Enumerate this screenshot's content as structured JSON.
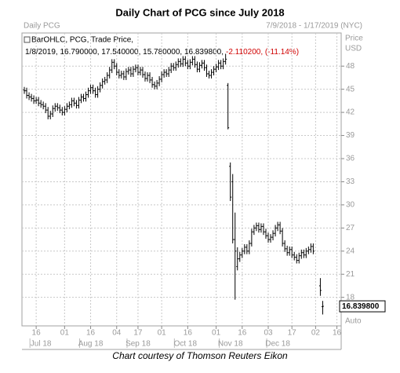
{
  "chart_data": {
    "type": "ohlc",
    "title": "Daily Chart of PCG since July 2018",
    "subtitle": "Daily PCG",
    "date_range": "7/9/2018 - 1/17/2019 (NYC)",
    "y_axis_label": [
      "Price",
      "USD"
    ],
    "scale_label": "Auto",
    "legend_title": "BarOHLC, PCG, Trade Price,",
    "legend_values": "1/8/2019, 16.790000, 17.540000, 15.780000, 16.839800,",
    "legend_change": "-2.110200, (-11.14%)",
    "last_value_label": "16.839800",
    "caption": "Chart courtesy of Thomson Reuters Eikon",
    "color": "#000000",
    "grid": true,
    "xlim": [
      -1,
      133.8
    ],
    "ylim": [
      14.3,
      52.3
    ],
    "yticks": [
      18,
      21,
      24,
      27,
      30,
      33,
      36,
      39,
      42,
      45,
      48
    ],
    "xticks": [
      {
        "value": 5,
        "label": "16"
      },
      {
        "value": 17,
        "label": "01"
      },
      {
        "value": 28,
        "label": "16"
      },
      {
        "value": 39,
        "label": "04"
      },
      {
        "value": 48,
        "label": "17"
      },
      {
        "value": 58,
        "label": "01"
      },
      {
        "value": 69,
        "label": "16"
      },
      {
        "value": 81,
        "label": "01"
      },
      {
        "value": 92,
        "label": "16"
      },
      {
        "value": 103,
        "label": "03"
      },
      {
        "value": 113,
        "label": "17"
      },
      {
        "value": 123,
        "label": "02"
      },
      {
        "value": 132,
        "label": "16"
      }
    ],
    "month_labels": [
      {
        "value": 7,
        "label": "Jul 18"
      },
      {
        "value": 28,
        "label": "Aug 18"
      },
      {
        "value": 48,
        "label": "Sep 18"
      },
      {
        "value": 68,
        "label": "Oct 18"
      },
      {
        "value": 87,
        "label": "Nov 18"
      },
      {
        "value": 107,
        "label": "Dec 18"
      }
    ],
    "ohlc": {
      "open": [
        44.9,
        44.8,
        44.2,
        44.0,
        43.8,
        43.5,
        43.6,
        43.2,
        43.0,
        42.8,
        42.3,
        41.5,
        41.8,
        42.5,
        42.8,
        42.6,
        42.3,
        42.0,
        42.4,
        42.8,
        43.0,
        43.5,
        43.2,
        42.9,
        43.6,
        44.0,
        43.8,
        44.3,
        44.8,
        45.2,
        44.8,
        44.3,
        45.0,
        45.5,
        46.0,
        46.2,
        46.8,
        47.5,
        48.5,
        48.0,
        47.2,
        46.8,
        47.0,
        46.6,
        47.3,
        47.5,
        47.0,
        47.6,
        47.8,
        47.2,
        47.5,
        46.9,
        46.4,
        46.8,
        46.2,
        45.6,
        45.4,
        45.8,
        46.3,
        46.9,
        47.2,
        47.0,
        47.5,
        48.0,
        47.8,
        48.2,
        48.6,
        48.3,
        48.9,
        48.4,
        48.0,
        48.5,
        48.9,
        48.2,
        47.6,
        48.1,
        48.4,
        47.8,
        47.0,
        46.8,
        47.2,
        47.6,
        47.9,
        48.4,
        48.0,
        48.6,
        45.5,
        35.0,
        33.0,
        25.5,
        22.0,
        23.0,
        23.5,
        24.0,
        24.5,
        24.0,
        25.0,
        26.5,
        27.0,
        27.3,
        26.8,
        27.2,
        26.5,
        26.0,
        25.5,
        25.8,
        26.3,
        27.0,
        27.4,
        26.6,
        25.0,
        24.3,
        23.8,
        24.2,
        23.5,
        23.2,
        22.8,
        23.4,
        23.8,
        23.5,
        24.0,
        24.2,
        24.6,
        null,
        null,
        19.5,
        16.79
      ],
      "high": [
        45.3,
        45.2,
        44.6,
        44.4,
        44.2,
        44.0,
        44.0,
        43.6,
        43.4,
        43.2,
        42.7,
        42.2,
        42.9,
        43.2,
        43.2,
        43.0,
        42.7,
        42.8,
        43.2,
        43.4,
        43.9,
        43.9,
        43.6,
        44.0,
        44.4,
        44.4,
        44.7,
        45.2,
        45.6,
        45.6,
        45.2,
        45.4,
        45.9,
        46.4,
        46.6,
        47.2,
        47.9,
        48.9,
        48.9,
        48.4,
        47.6,
        47.4,
        47.4,
        47.7,
        47.9,
        47.9,
        48.0,
        48.2,
        48.2,
        47.9,
        47.9,
        47.3,
        47.2,
        47.2,
        46.6,
        46.0,
        46.2,
        46.7,
        47.3,
        47.6,
        47.6,
        47.9,
        48.4,
        48.4,
        48.6,
        49.0,
        49.0,
        49.3,
        49.3,
        48.8,
        48.9,
        49.3,
        49.3,
        48.6,
        48.5,
        48.8,
        48.8,
        48.2,
        47.4,
        47.6,
        48.0,
        48.3,
        48.8,
        48.8,
        49.0,
        49.6,
        45.8,
        35.5,
        34.0,
        29.0,
        24.5,
        23.9,
        24.4,
        24.9,
        24.9,
        25.4,
        26.9,
        27.4,
        27.7,
        27.7,
        27.6,
        27.6,
        26.9,
        26.4,
        26.2,
        26.7,
        27.4,
        27.8,
        27.8,
        27.0,
        25.4,
        24.7,
        24.6,
        24.6,
        23.9,
        23.6,
        23.8,
        24.2,
        24.2,
        24.4,
        24.6,
        25.0,
        25.0,
        null,
        null,
        20.5,
        17.54
      ],
      "low": [
        44.4,
        43.8,
        43.6,
        43.4,
        43.1,
        43.1,
        42.8,
        42.6,
        42.4,
        41.9,
        41.1,
        41.1,
        41.4,
        42.1,
        42.2,
        41.9,
        41.6,
        41.6,
        42.0,
        42.4,
        42.6,
        42.8,
        42.5,
        42.5,
        43.2,
        43.4,
        43.4,
        43.9,
        44.4,
        44.4,
        43.9,
        43.9,
        44.6,
        45.1,
        45.6,
        45.8,
        46.4,
        47.1,
        47.6,
        46.8,
        46.4,
        46.4,
        46.2,
        46.2,
        46.9,
        46.6,
        46.6,
        47.2,
        46.8,
        46.8,
        46.5,
        46.0,
        46.0,
        45.8,
        45.2,
        45.0,
        45.0,
        45.4,
        45.9,
        46.5,
        46.6,
        46.6,
        47.1,
        47.4,
        47.4,
        47.8,
        47.9,
        47.9,
        48.0,
        47.6,
        47.6,
        48.1,
        47.8,
        47.2,
        47.2,
        47.7,
        47.4,
        46.6,
        46.4,
        46.4,
        46.8,
        47.2,
        47.5,
        47.6,
        47.6,
        48.2,
        39.8,
        30.5,
        25.0,
        17.7,
        21.5,
        22.6,
        23.1,
        23.6,
        23.6,
        23.6,
        24.6,
        26.1,
        26.6,
        26.4,
        26.4,
        26.1,
        25.6,
        25.1,
        25.1,
        25.4,
        25.9,
        26.6,
        26.2,
        24.6,
        23.9,
        23.4,
        23.4,
        23.1,
        22.8,
        22.4,
        22.4,
        23.0,
        23.1,
        23.1,
        23.6,
        23.8,
        23.6,
        null,
        null,
        18.2,
        15.78
      ],
      "close": [
        44.8,
        44.2,
        44.0,
        43.8,
        43.5,
        43.6,
        43.2,
        43.0,
        42.8,
        42.3,
        41.5,
        41.8,
        42.5,
        42.8,
        42.6,
        42.3,
        42.0,
        42.4,
        42.8,
        43.0,
        43.5,
        43.2,
        42.9,
        43.6,
        44.0,
        43.8,
        44.3,
        44.8,
        45.2,
        44.8,
        44.3,
        45.0,
        45.5,
        46.0,
        46.2,
        46.8,
        47.5,
        48.5,
        48.0,
        47.2,
        46.8,
        47.0,
        46.6,
        47.3,
        47.5,
        47.0,
        47.6,
        47.8,
        47.2,
        47.5,
        46.9,
        46.4,
        46.8,
        46.2,
        45.6,
        45.4,
        45.8,
        46.3,
        46.9,
        47.2,
        47.0,
        47.5,
        48.0,
        47.8,
        48.2,
        48.6,
        48.3,
        48.9,
        48.4,
        48.0,
        48.5,
        48.9,
        48.2,
        47.6,
        48.1,
        48.4,
        47.8,
        47.0,
        46.8,
        47.2,
        47.6,
        47.9,
        48.4,
        48.0,
        48.6,
        48.9,
        40.0,
        31.0,
        25.5,
        24.0,
        23.0,
        23.5,
        24.0,
        24.5,
        24.0,
        25.0,
        26.5,
        27.0,
        27.3,
        26.8,
        27.2,
        26.5,
        26.0,
        25.5,
        25.8,
        26.3,
        27.0,
        27.4,
        26.6,
        25.0,
        24.3,
        23.8,
        24.2,
        23.5,
        23.2,
        22.8,
        23.4,
        23.8,
        23.5,
        24.0,
        24.2,
        24.6,
        24.0,
        null,
        null,
        18.9,
        16.8398
      ]
    }
  }
}
